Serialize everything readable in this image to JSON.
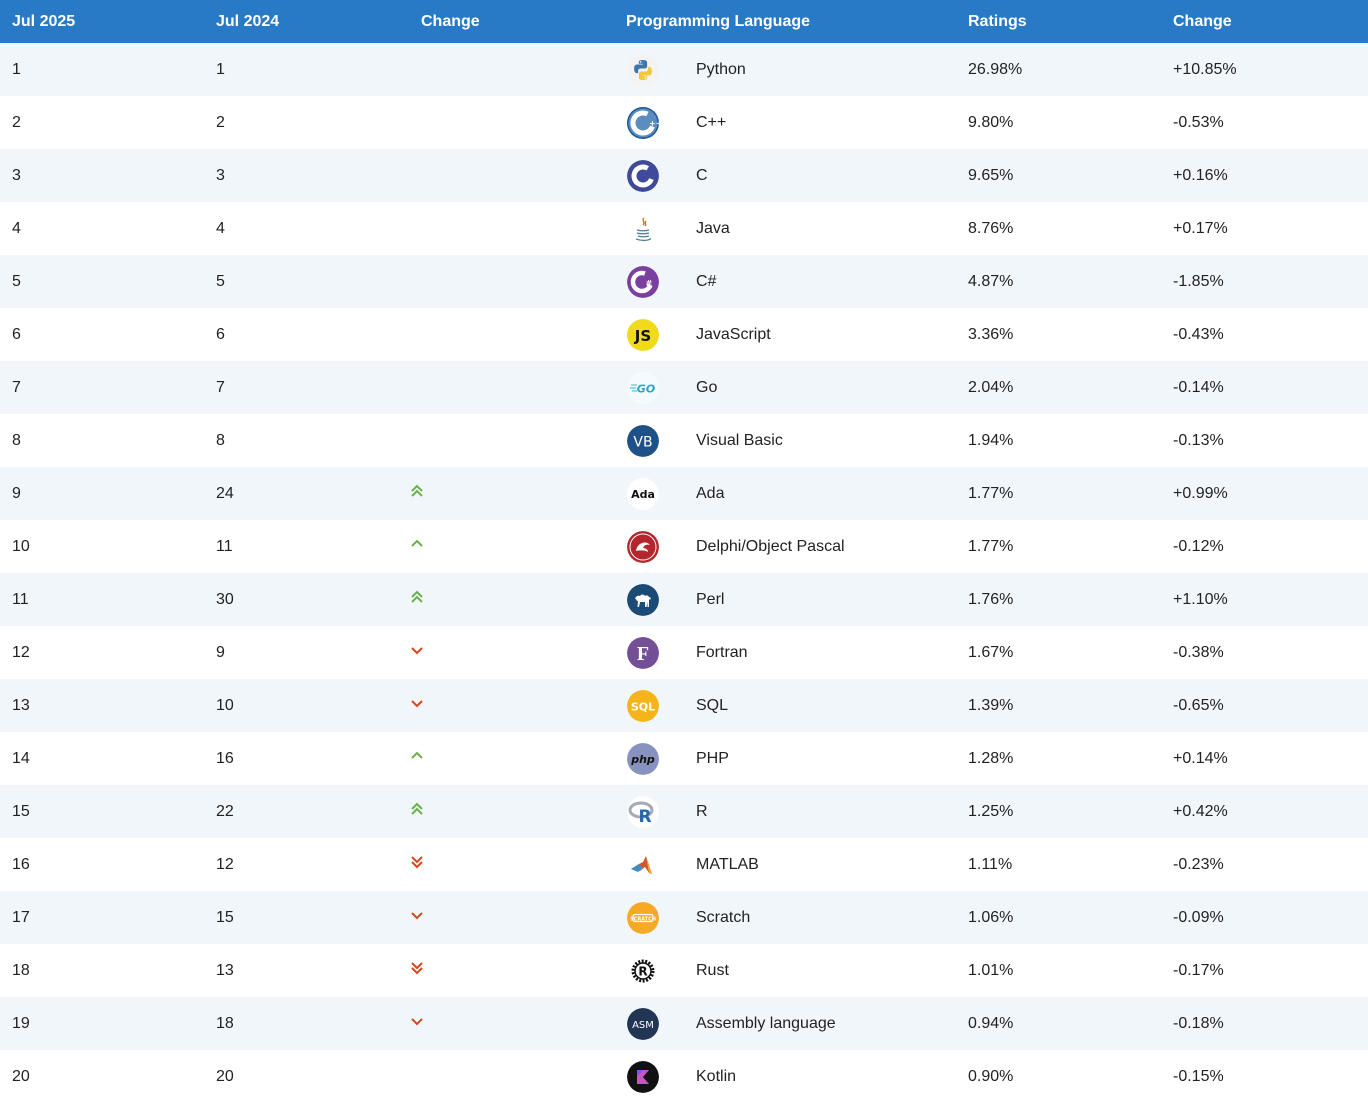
{
  "header": {
    "col_current": "Jul 2025",
    "col_previous": "Jul 2024",
    "col_change": "Change",
    "col_language": "Programming Language",
    "col_ratings": "Ratings",
    "col_rating_change": "Change"
  },
  "colors": {
    "header_bg": "#2879c6",
    "row_alt": "#f1f6fb",
    "up_arrow": "#6ab04c",
    "down_arrow": "#d9461e"
  },
  "rows": [
    {
      "rank": "1",
      "prev": "1",
      "trend": "none",
      "icon": "python-icon",
      "language": "Python",
      "rating": "26.98%",
      "change": "+10.85%"
    },
    {
      "rank": "2",
      "prev": "2",
      "trend": "none",
      "icon": "cpp-icon",
      "language": "C++",
      "rating": "9.80%",
      "change": "-0.53%"
    },
    {
      "rank": "3",
      "prev": "3",
      "trend": "none",
      "icon": "c-icon",
      "language": "C",
      "rating": "9.65%",
      "change": "+0.16%"
    },
    {
      "rank": "4",
      "prev": "4",
      "trend": "none",
      "icon": "java-icon",
      "language": "Java",
      "rating": "8.76%",
      "change": "+0.17%"
    },
    {
      "rank": "5",
      "prev": "5",
      "trend": "none",
      "icon": "csharp-icon",
      "language": "C#",
      "rating": "4.87%",
      "change": "-1.85%"
    },
    {
      "rank": "6",
      "prev": "6",
      "trend": "none",
      "icon": "javascript-icon",
      "language": "JavaScript",
      "rating": "3.36%",
      "change": "-0.43%"
    },
    {
      "rank": "7",
      "prev": "7",
      "trend": "none",
      "icon": "go-icon",
      "language": "Go",
      "rating": "2.04%",
      "change": "-0.14%"
    },
    {
      "rank": "8",
      "prev": "8",
      "trend": "none",
      "icon": "visual-basic-icon",
      "language": "Visual Basic",
      "rating": "1.94%",
      "change": "-0.13%"
    },
    {
      "rank": "9",
      "prev": "24",
      "trend": "up2",
      "icon": "ada-icon",
      "language": "Ada",
      "rating": "1.77%",
      "change": "+0.99%"
    },
    {
      "rank": "10",
      "prev": "11",
      "trend": "up",
      "icon": "delphi-icon",
      "language": "Delphi/Object Pascal",
      "rating": "1.77%",
      "change": "-0.12%"
    },
    {
      "rank": "11",
      "prev": "30",
      "trend": "up2",
      "icon": "perl-icon",
      "language": "Perl",
      "rating": "1.76%",
      "change": "+1.10%"
    },
    {
      "rank": "12",
      "prev": "9",
      "trend": "down",
      "icon": "fortran-icon",
      "language": "Fortran",
      "rating": "1.67%",
      "change": "-0.38%"
    },
    {
      "rank": "13",
      "prev": "10",
      "trend": "down",
      "icon": "sql-icon",
      "language": "SQL",
      "rating": "1.39%",
      "change": "-0.65%"
    },
    {
      "rank": "14",
      "prev": "16",
      "trend": "up",
      "icon": "php-icon",
      "language": "PHP",
      "rating": "1.28%",
      "change": "+0.14%"
    },
    {
      "rank": "15",
      "prev": "22",
      "trend": "up2",
      "icon": "r-icon",
      "language": "R",
      "rating": "1.25%",
      "change": "+0.42%"
    },
    {
      "rank": "16",
      "prev": "12",
      "trend": "down2",
      "icon": "matlab-icon",
      "language": "MATLAB",
      "rating": "1.11%",
      "change": "-0.23%"
    },
    {
      "rank": "17",
      "prev": "15",
      "trend": "down",
      "icon": "scratch-icon",
      "language": "Scratch",
      "rating": "1.06%",
      "change": "-0.09%"
    },
    {
      "rank": "18",
      "prev": "13",
      "trend": "down2",
      "icon": "rust-icon",
      "language": "Rust",
      "rating": "1.01%",
      "change": "-0.17%"
    },
    {
      "rank": "19",
      "prev": "18",
      "trend": "down",
      "icon": "assembly-icon",
      "language": "Assembly language",
      "rating": "0.94%",
      "change": "-0.18%"
    },
    {
      "rank": "20",
      "prev": "20",
      "trend": "none",
      "icon": "kotlin-icon",
      "language": "Kotlin",
      "rating": "0.90%",
      "change": "-0.15%"
    }
  ]
}
